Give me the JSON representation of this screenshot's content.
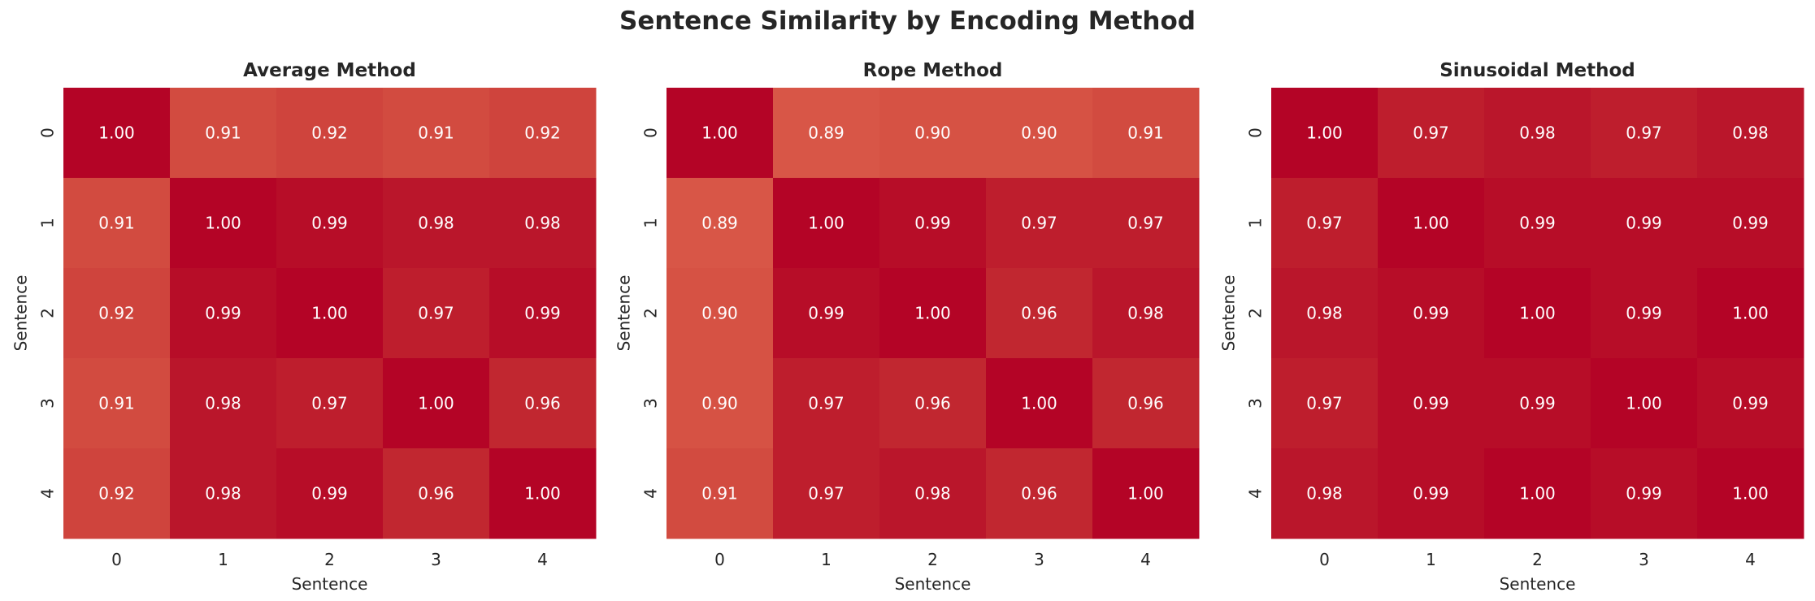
{
  "chart_data": {
    "title": "Sentence Similarity by Encoding Method",
    "colormap": "coolwarm",
    "annotation_color": "#ffffff",
    "panels": [
      {
        "type": "heatmap",
        "title": "Average Method",
        "xlabel": "Sentence",
        "ylabel": "Sentence",
        "x_ticks": [
          "0",
          "1",
          "2",
          "3",
          "4"
        ],
        "y_ticks": [
          "0",
          "1",
          "2",
          "3",
          "4"
        ],
        "values": [
          [
            1.0,
            0.91,
            0.92,
            0.91,
            0.92
          ],
          [
            0.91,
            1.0,
            0.99,
            0.98,
            0.98
          ],
          [
            0.92,
            0.99,
            1.0,
            0.97,
            0.99
          ],
          [
            0.91,
            0.98,
            0.97,
            1.0,
            0.96
          ],
          [
            0.92,
            0.98,
            0.99,
            0.96,
            1.0
          ]
        ]
      },
      {
        "type": "heatmap",
        "title": "Rope Method",
        "xlabel": "Sentence",
        "ylabel": "Sentence",
        "x_ticks": [
          "0",
          "1",
          "2",
          "3",
          "4"
        ],
        "y_ticks": [
          "0",
          "1",
          "2",
          "3",
          "4"
        ],
        "values": [
          [
            1.0,
            0.89,
            0.9,
            0.9,
            0.91
          ],
          [
            0.89,
            1.0,
            0.99,
            0.97,
            0.97
          ],
          [
            0.9,
            0.99,
            1.0,
            0.96,
            0.98
          ],
          [
            0.9,
            0.97,
            0.96,
            1.0,
            0.96
          ],
          [
            0.91,
            0.97,
            0.98,
            0.96,
            1.0
          ]
        ]
      },
      {
        "type": "heatmap",
        "title": "Sinusoidal Method",
        "xlabel": "Sentence",
        "ylabel": "Sentence",
        "x_ticks": [
          "0",
          "1",
          "2",
          "3",
          "4"
        ],
        "y_ticks": [
          "0",
          "1",
          "2",
          "3",
          "4"
        ],
        "values": [
          [
            1.0,
            0.97,
            0.98,
            0.97,
            0.98
          ],
          [
            0.97,
            1.0,
            0.99,
            0.99,
            0.99
          ],
          [
            0.98,
            0.99,
            1.0,
            0.99,
            1.0
          ],
          [
            0.97,
            0.99,
            0.99,
            1.0,
            0.99
          ],
          [
            0.98,
            0.99,
            1.0,
            0.99,
            1.0
          ]
        ]
      }
    ]
  }
}
